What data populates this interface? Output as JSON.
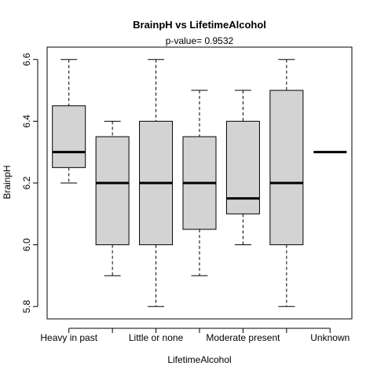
{
  "chart_data": {
    "type": "box",
    "title": "BrainpH  vs  LifetimeAlcohol",
    "subtitle": "p-value= 0.9532",
    "xlabel": "LifetimeAlcohol",
    "ylabel": "BrainpH",
    "ylim": [
      5.76,
      6.64
    ],
    "y_ticks": [
      5.8,
      6.0,
      6.2,
      6.4,
      6.6
    ],
    "y_tick_labels": [
      "5.8",
      "6.0",
      "6.2",
      "6.4",
      "6.6"
    ],
    "x_tick_labels_shown": [
      "Heavy in past",
      "",
      "Little or none",
      "",
      "Moderate present",
      "",
      "Unknown"
    ],
    "box_fill": "#d3d3d3",
    "boxes": [
      {
        "min": 6.2,
        "q1": 6.25,
        "median": 6.3,
        "q3": 6.45,
        "max": 6.6
      },
      {
        "min": 5.9,
        "q1": 6.0,
        "median": 6.2,
        "q3": 6.35,
        "max": 6.4
      },
      {
        "min": 5.8,
        "q1": 6.0,
        "median": 6.2,
        "q3": 6.4,
        "max": 6.6
      },
      {
        "min": 5.9,
        "q1": 6.05,
        "median": 6.2,
        "q3": 6.35,
        "max": 6.5
      },
      {
        "min": 6.0,
        "q1": 6.1,
        "median": 6.15,
        "q3": 6.4,
        "max": 6.5
      },
      {
        "min": 5.8,
        "q1": 6.0,
        "median": 6.2,
        "q3": 6.5,
        "max": 6.6
      },
      {
        "min": 6.3,
        "q1": 6.3,
        "median": 6.3,
        "q3": 6.3,
        "max": 6.3
      }
    ]
  }
}
